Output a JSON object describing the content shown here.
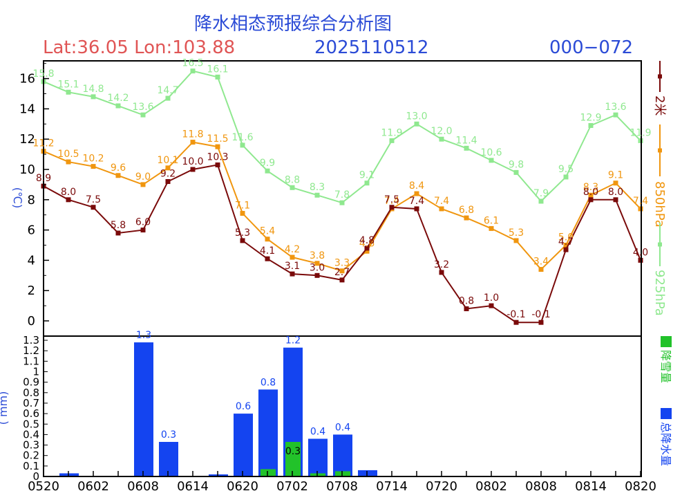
{
  "header": {
    "title": "降水相态预报综合分析图",
    "latlon": "Lat:36.05  Lon:103.88",
    "date": "2025110512",
    "range": "000−072"
  },
  "colors": {
    "t2m": "#7a0a0a",
    "t850": "#f0960f",
    "t925": "#8fe88f",
    "total_precip": "#1444f0",
    "snow": "#22c22a",
    "title_blue": "#2b4bd6",
    "latlon_red": "#e05555"
  },
  "chart_data": [
    {
      "type": "line",
      "ylabel": "(℃)",
      "ylim": [
        -1,
        17.4
      ],
      "yticks": [
        0,
        2,
        4,
        6,
        8,
        10,
        12,
        14,
        16
      ],
      "x_index": [
        0,
        1,
        2,
        3,
        4,
        5,
        6,
        7,
        8,
        9,
        10,
        11,
        12,
        13,
        14,
        15,
        16,
        17,
        18,
        19,
        20,
        21,
        22,
        23,
        24
      ],
      "series": [
        {
          "key": "t925",
          "name": "925hPa",
          "values": [
            15.8,
            15.1,
            14.8,
            14.2,
            13.6,
            14.7,
            16.5,
            16.1,
            11.6,
            9.9,
            8.8,
            8.3,
            7.8,
            9.1,
            11.9,
            13.0,
            12.0,
            11.4,
            10.6,
            9.8,
            7.9,
            9.5,
            12.9,
            13.6,
            11.9
          ],
          "labels": [
            "15.8",
            "15.1",
            "14.8",
            "14.2",
            "13.6",
            "14.7",
            "16.5",
            "16.1",
            "11.6",
            "9.9",
            "8.8",
            "8.3",
            "7.8",
            "9.1",
            "11.9",
            "13.0",
            "12.0",
            "11.4",
            "10.6",
            "9.8",
            "7.9",
            "9.5",
            "12.9",
            "13.6",
            "11.9"
          ]
        },
        {
          "key": "t850",
          "name": "850hPa",
          "values": [
            11.2,
            10.5,
            10.2,
            9.6,
            9.0,
            10.1,
            11.8,
            11.5,
            7.1,
            5.4,
            4.2,
            3.8,
            3.3,
            4.6,
            7.4,
            8.4,
            7.4,
            6.8,
            6.1,
            5.3,
            3.4,
            5.0,
            8.3,
            9.1,
            7.4
          ],
          "labels": [
            "11.2",
            "10.5",
            "10.2",
            "9.6",
            "9.0",
            "10.1",
            "11.8",
            "11.5",
            "7.1",
            "5.4",
            "4.2",
            "3.8",
            "3.3",
            "4.6",
            "7.4",
            "8.4",
            "7.4",
            "6.8",
            "6.1",
            "5.3",
            "3.4",
            "5.0",
            "8.3",
            "9.1",
            "7.4"
          ]
        },
        {
          "key": "t2m",
          "name": "2米",
          "values": [
            8.9,
            8.0,
            7.5,
            5.8,
            6.0,
            9.2,
            10.0,
            10.3,
            5.3,
            4.1,
            3.1,
            3.0,
            2.7,
            4.8,
            7.5,
            7.4,
            3.2,
            0.8,
            1.0,
            -0.1,
            -0.1,
            4.7,
            8.0,
            8.0,
            4.0
          ],
          "labels": [
            "8.9",
            "8.0",
            "7.5",
            "5.8",
            "6.0",
            "9.2",
            "10.0",
            "10.3",
            "5.3",
            "4.1",
            "3.1",
            "3.0",
            "2.7",
            "4.8",
            "7.5",
            "7.4",
            "3.2",
            "0.8",
            "1.0",
            "-0.1",
            "-0.1",
            "4.7",
            "8.0",
            "8.0",
            "4.0"
          ]
        }
      ]
    },
    {
      "type": "bar",
      "ylabel": "( mm)",
      "ylim": [
        0,
        1.35
      ],
      "yticks": [
        "0",
        "0.1",
        "0.2",
        "0.3",
        "0.4",
        "0.5",
        "0.6",
        "0.7",
        "0.8",
        "0.9",
        "1",
        "1.1",
        "1.2",
        "1.3"
      ],
      "series": [
        {
          "key": "total_precip",
          "name": "总降水量",
          "x_index": [
            1,
            4,
            5,
            7,
            8,
            9,
            10,
            11,
            12,
            13
          ],
          "values": [
            0.03,
            1.28,
            0.33,
            0.02,
            0.6,
            0.83,
            1.23,
            0.36,
            0.4,
            0.06
          ],
          "labels": [
            "",
            "1.3",
            "0.3",
            "",
            "0.6",
            "0.8",
            "1.2",
            "0.4",
            "0.4",
            ""
          ]
        },
        {
          "key": "snow",
          "name": "降雪量",
          "x_index": [
            9,
            10,
            11,
            12
          ],
          "values": [
            0.07,
            0.33,
            0.03,
            0.05
          ],
          "labels": [
            "",
            "0.3",
            "",
            ""
          ]
        }
      ],
      "x_tick_labels": [
        "0520",
        "0602",
        "0608",
        "0614",
        "0620",
        "0702",
        "0708",
        "0714",
        "0720",
        "0802",
        "0808",
        "0814",
        "0820"
      ]
    }
  ]
}
